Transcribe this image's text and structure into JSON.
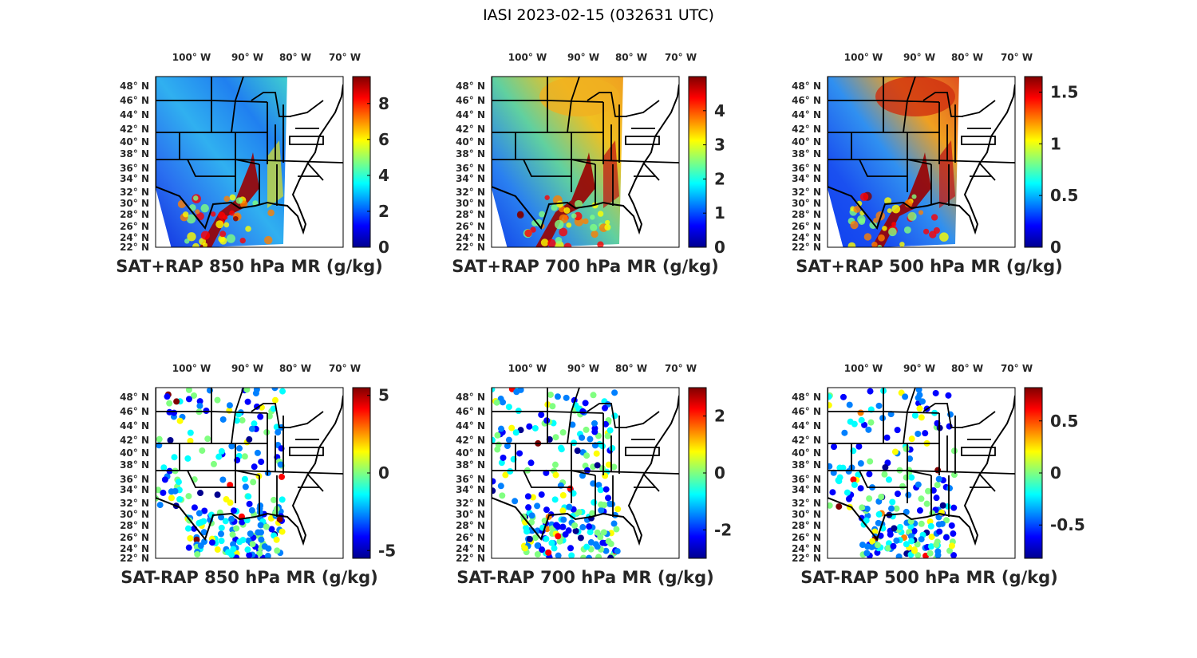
{
  "title": "IASI 2023-02-15 (032631 UTC)",
  "lon_labels": [
    "100",
    "90",
    "80",
    "70"
  ],
  "lon_suffix": "W",
  "lat_labels": [
    "48",
    "46",
    "44",
    "42",
    "40",
    "38",
    "36",
    "34",
    "32",
    "30",
    "28",
    "26",
    "24",
    "22"
  ],
  "lat_suffix": "N",
  "degree_symbol": "°",
  "colormap": "jet",
  "panels": [
    {
      "label": "SAT+RAP 850 hPa MR (g/kg)",
      "clim": [
        0,
        9.5
      ],
      "ticks": [
        "0",
        "2",
        "4",
        "6",
        "8"
      ],
      "tick_values": [
        0,
        2,
        4,
        6,
        8
      ],
      "type": "analysis"
    },
    {
      "label": "SAT+RAP 700 hPa MR (g/kg)",
      "clim": [
        0,
        5
      ],
      "ticks": [
        "0",
        "1",
        "2",
        "3",
        "4"
      ],
      "tick_values": [
        0,
        1,
        2,
        3,
        4
      ],
      "type": "analysis"
    },
    {
      "label": "SAT+RAP 500 hPa MR (g/kg)",
      "clim": [
        0,
        1.65
      ],
      "ticks": [
        "0",
        "0.5",
        "1",
        "1.5"
      ],
      "tick_values": [
        0,
        0.5,
        1,
        1.5
      ],
      "type": "analysis"
    },
    {
      "label": "SAT-RAP 850 hPa MR (g/kg)",
      "clim": [
        -5.5,
        5.5
      ],
      "ticks": [
        "-5",
        "0",
        "5"
      ],
      "tick_values": [
        -5,
        0,
        5
      ],
      "type": "difference"
    },
    {
      "label": "SAT-RAP 700 hPa MR (g/kg)",
      "clim": [
        -3,
        3
      ],
      "ticks": [
        "-2",
        "0",
        "2"
      ],
      "tick_values": [
        -2,
        0,
        2
      ],
      "type": "difference"
    },
    {
      "label": "SAT-RAP 500 hPa MR (g/kg)",
      "clim": [
        -0.82,
        0.82
      ],
      "ticks": [
        "-0.5",
        "0",
        "0.5"
      ],
      "tick_values": [
        -0.5,
        0,
        0.5
      ],
      "type": "difference"
    }
  ]
}
